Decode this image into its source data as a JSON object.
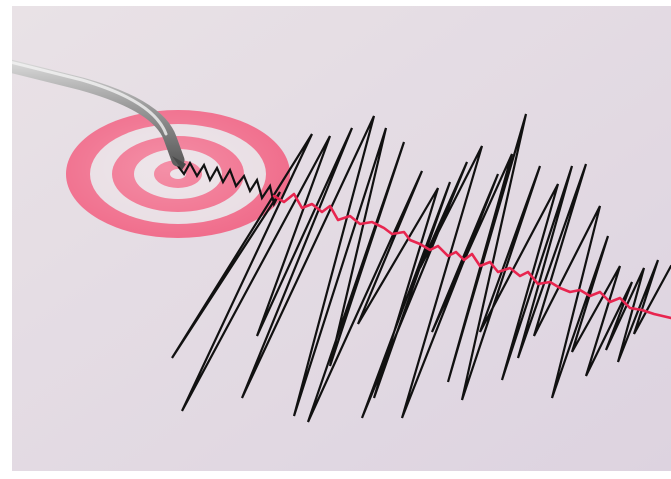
{
  "image": {
    "subject": "seismograph",
    "icons": [
      "target-rings-icon",
      "stylus-icon",
      "seismic-wave-icon",
      "epicenter-line-icon"
    ],
    "colors": {
      "background_top": "#e9e2e6",
      "background_bottom": "#ddd3e0",
      "ring_pink": "#f06b8a",
      "ring_gap": "#e8dde3",
      "trace_black": "#111111",
      "trace_red": "#e8254f",
      "stylus_metal": "#9a9a9a"
    }
  }
}
